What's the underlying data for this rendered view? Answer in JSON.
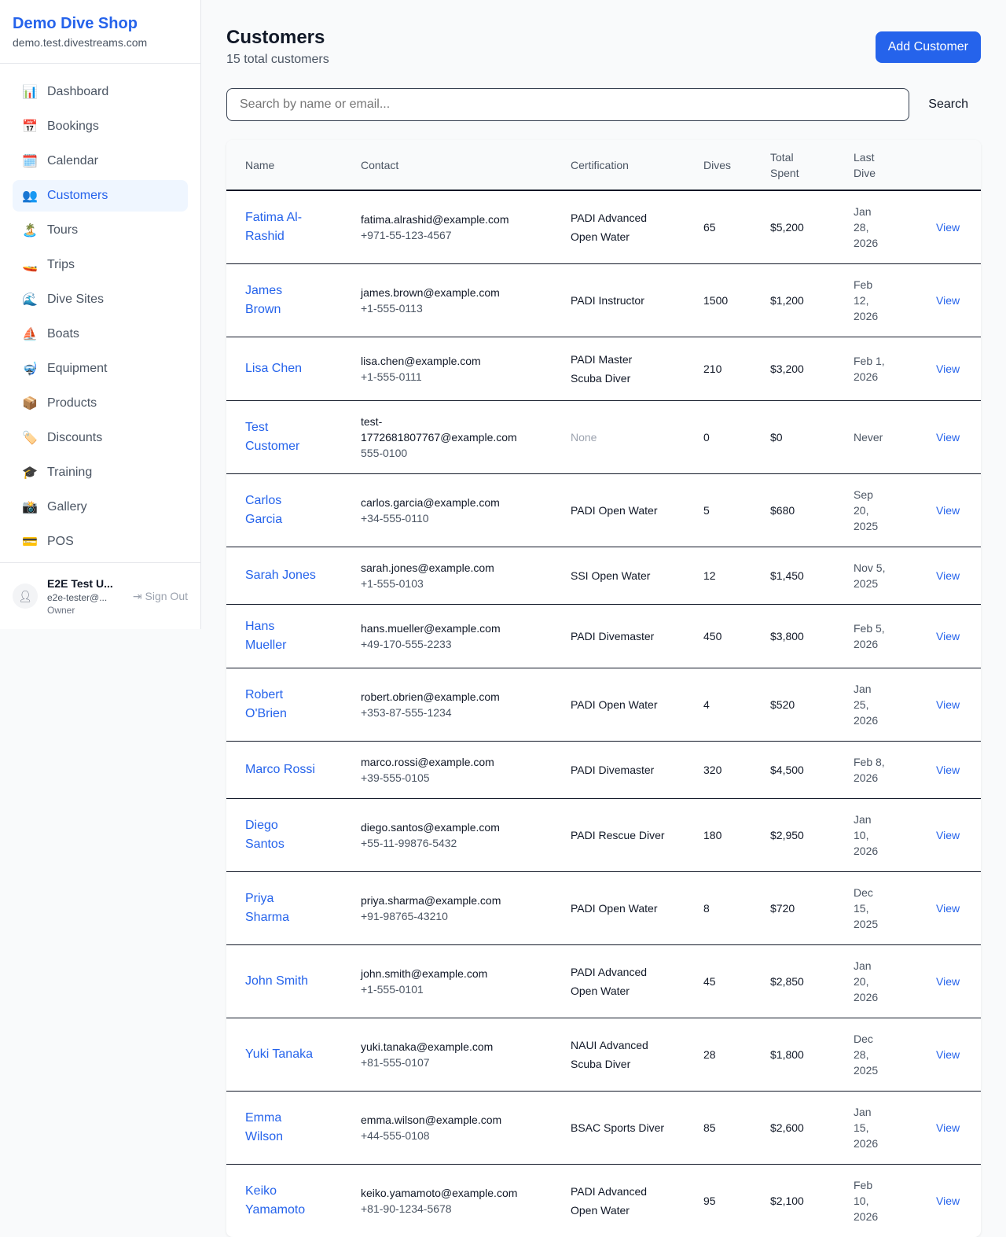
{
  "brand": {
    "name": "Demo Dive Shop",
    "domain": "demo.test.divestreams.com"
  },
  "nav": [
    {
      "label": "Dashboard",
      "icon": "📊",
      "active": false
    },
    {
      "label": "Bookings",
      "icon": "📅",
      "active": false
    },
    {
      "label": "Calendar",
      "icon": "🗓️",
      "active": false
    },
    {
      "label": "Customers",
      "icon": "👥",
      "active": true
    },
    {
      "label": "Tours",
      "icon": "🏝️",
      "active": false
    },
    {
      "label": "Trips",
      "icon": "🚤",
      "active": false
    },
    {
      "label": "Dive Sites",
      "icon": "🌊",
      "active": false
    },
    {
      "label": "Boats",
      "icon": "⛵",
      "active": false
    },
    {
      "label": "Equipment",
      "icon": "🤿",
      "active": false
    },
    {
      "label": "Products",
      "icon": "📦",
      "active": false
    },
    {
      "label": "Discounts",
      "icon": "🏷️",
      "active": false
    },
    {
      "label": "Training",
      "icon": "🎓",
      "active": false
    },
    {
      "label": "Gallery",
      "icon": "📸",
      "active": false
    },
    {
      "label": "POS",
      "icon": "💳",
      "active": false
    }
  ],
  "user": {
    "name": "E2E Test U...",
    "email": "e2e-tester@...",
    "role": "Owner",
    "sign_out": "Sign Out"
  },
  "page": {
    "title": "Customers",
    "subtitle": "15 total customers",
    "add_label": "Add Customer",
    "search_placeholder": "Search by name or email...",
    "search_label": "Search"
  },
  "columns": [
    "Name",
    "Contact",
    "Certification",
    "Dives",
    "Total Spent",
    "Last Dive",
    ""
  ],
  "rows": [
    {
      "name": "Fatima Al-Rashid",
      "email": "fatima.alrashid@example.com",
      "phone": "+971-55-123-4567",
      "cert": "PADI Advanced Open Water",
      "dives": "65",
      "spent": "$5,200",
      "last": "Jan 28, 2026"
    },
    {
      "name": "James Brown",
      "email": "james.brown@example.com",
      "phone": "+1-555-0113",
      "cert": "PADI Instructor",
      "dives": "1500",
      "spent": "$1,200",
      "last": "Feb 12, 2026"
    },
    {
      "name": "Lisa Chen",
      "email": "lisa.chen@example.com",
      "phone": "+1-555-0111",
      "cert": "PADI Master Scuba Diver",
      "dives": "210",
      "spent": "$3,200",
      "last": "Feb 1, 2026"
    },
    {
      "name": "Test Customer",
      "email": "test-1772681807767@example.com",
      "phone": "555-0100",
      "cert": "None",
      "dives": "0",
      "spent": "$0",
      "last": "Never"
    },
    {
      "name": "Carlos Garcia",
      "email": "carlos.garcia@example.com",
      "phone": "+34-555-0110",
      "cert": "PADI Open Water",
      "dives": "5",
      "spent": "$680",
      "last": "Sep 20, 2025"
    },
    {
      "name": "Sarah Jones",
      "email": "sarah.jones@example.com",
      "phone": "+1-555-0103",
      "cert": "SSI Open Water",
      "dives": "12",
      "spent": "$1,450",
      "last": "Nov 5, 2025"
    },
    {
      "name": "Hans Mueller",
      "email": "hans.mueller@example.com",
      "phone": "+49-170-555-2233",
      "cert": "PADI Divemaster",
      "dives": "450",
      "spent": "$3,800",
      "last": "Feb 5, 2026"
    },
    {
      "name": "Robert O'Brien",
      "email": "robert.obrien@example.com",
      "phone": "+353-87-555-1234",
      "cert": "PADI Open Water",
      "dives": "4",
      "spent": "$520",
      "last": "Jan 25, 2026"
    },
    {
      "name": "Marco Rossi",
      "email": "marco.rossi@example.com",
      "phone": "+39-555-0105",
      "cert": "PADI Divemaster",
      "dives": "320",
      "spent": "$4,500",
      "last": "Feb 8, 2026"
    },
    {
      "name": "Diego Santos",
      "email": "diego.santos@example.com",
      "phone": "+55-11-99876-5432",
      "cert": "PADI Rescue Diver",
      "dives": "180",
      "spent": "$2,950",
      "last": "Jan 10, 2026"
    },
    {
      "name": "Priya Sharma",
      "email": "priya.sharma@example.com",
      "phone": "+91-98765-43210",
      "cert": "PADI Open Water",
      "dives": "8",
      "spent": "$720",
      "last": "Dec 15, 2025"
    },
    {
      "name": "John Smith",
      "email": "john.smith@example.com",
      "phone": "+1-555-0101",
      "cert": "PADI Advanced Open Water",
      "dives": "45",
      "spent": "$2,850",
      "last": "Jan 20, 2026"
    },
    {
      "name": "Yuki Tanaka",
      "email": "yuki.tanaka@example.com",
      "phone": "+81-555-0107",
      "cert": "NAUI Advanced Scuba Diver",
      "dives": "28",
      "spent": "$1,800",
      "last": "Dec 28, 2025"
    },
    {
      "name": "Emma Wilson",
      "email": "emma.wilson@example.com",
      "phone": "+44-555-0108",
      "cert": "BSAC Sports Diver",
      "dives": "85",
      "spent": "$2,600",
      "last": "Jan 15, 2026"
    },
    {
      "name": "Keiko Yamamoto",
      "email": "keiko.yamamoto@example.com",
      "phone": "+81-90-1234-5678",
      "cert": "PADI Advanced Open Water",
      "dives": "95",
      "spent": "$2,100",
      "last": "Feb 10, 2026"
    }
  ],
  "view_label": "View"
}
